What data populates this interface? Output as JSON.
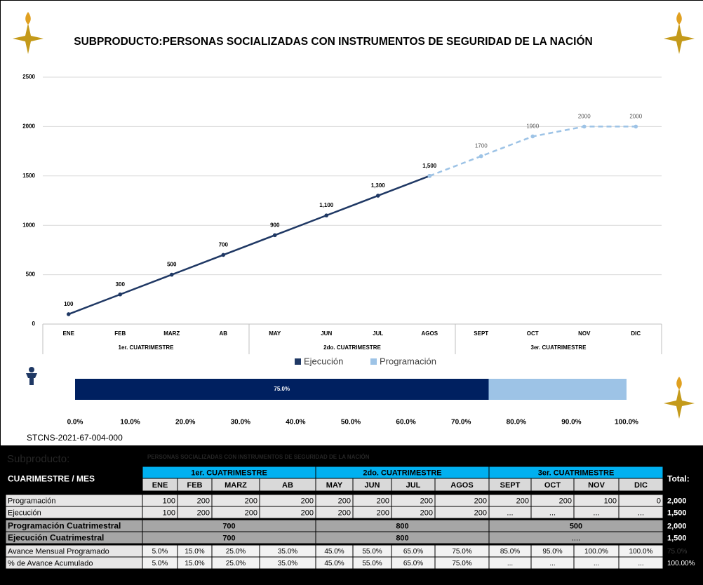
{
  "chart_data": [
    {
      "type": "line",
      "title": "SUBPRODUCTO:PERSONAS SOCIALIZADAS CON INSTRUMENTOS DE SEGURIDAD DE LA NACIÓN",
      "categories": [
        "ENE",
        "FEB",
        "MARZ",
        "AB",
        "MAY",
        "JUN",
        "JUL",
        "AGOS",
        "SEPT",
        "OCT",
        "NOV",
        "DIC"
      ],
      "groups": [
        "1er. CUATRIMESTRE",
        "2do. CUATRIMESTRE",
        "3er. CUATRIMESTRE"
      ],
      "series": [
        {
          "name": "Ejecución",
          "color": "#1f3864",
          "dashed": false,
          "values": [
            100,
            300,
            500,
            700,
            900,
            1100,
            1300,
            1500,
            null,
            null,
            null,
            null
          ],
          "value_labels": [
            "100",
            "300",
            "500",
            "700",
            "900",
            "1,100",
            "1,300",
            "1,500",
            null,
            null,
            null,
            null
          ]
        },
        {
          "name": "Programación",
          "color": "#9dc3e6",
          "dashed": true,
          "values": [
            null,
            null,
            null,
            null,
            null,
            null,
            null,
            1500,
            1700,
            1900,
            2000,
            2000
          ],
          "value_labels": [
            null,
            null,
            null,
            null,
            null,
            null,
            null,
            null,
            "1700",
            "1900",
            "2000",
            "2000"
          ]
        }
      ],
      "ylim": [
        0,
        2500
      ],
      "yticks": [
        0,
        500,
        1000,
        1500,
        2000,
        2500
      ],
      "grid": true,
      "legend": "bottom"
    },
    {
      "type": "stacked-bar",
      "orientation": "horizontal",
      "series": [
        {
          "color": "#002060",
          "values": [
            75
          ],
          "value_labels": [
            "75.0%"
          ]
        },
        {
          "color": "#9dc3e6",
          "values": [
            25
          ]
        }
      ],
      "xlim": [
        0,
        100
      ],
      "xticks": [
        {
          "value": 0,
          "label": "0.0%"
        },
        {
          "value": 10,
          "label": "10.0%"
        },
        {
          "value": 20,
          "label": "20.0%"
        },
        {
          "value": 30,
          "label": "30.0%"
        },
        {
          "value": 40,
          "label": "40.0%"
        },
        {
          "value": 50,
          "label": "50.0%"
        },
        {
          "value": 60,
          "label": "60.0%"
        },
        {
          "value": 70,
          "label": "70.0%"
        },
        {
          "value": 80,
          "label": "80.0%"
        },
        {
          "value": 90,
          "label": "90.0%"
        },
        {
          "value": 100,
          "label": "100.0%"
        }
      ]
    }
  ],
  "code": "STCNS-2021-67-004-000",
  "table": {
    "caption": "Subproducto:",
    "subtitle": "PERSONAS SOCIALIZADAS CON INSTRUMENTOS DE SEGURIDAD DE LA NACIÓN",
    "corner": "CUARIMESTRE / MES",
    "groups": [
      "1er. CUATRIMESTRE",
      "2do. CUATRIMESTRE",
      "3er. CUATRIMESTRE"
    ],
    "months": [
      "ENE",
      "FEB",
      "MARZ",
      "AB",
      "MAY",
      "JUN",
      "JUL",
      "AGOS",
      "SEPT",
      "OCT",
      "NOV",
      "DIC"
    ],
    "total_header": "Total:",
    "rows": [
      {
        "label": "Programación",
        "cells": [
          100,
          200,
          200,
          200,
          200,
          200,
          200,
          200,
          200,
          200,
          100,
          0
        ],
        "total": "2,000"
      },
      {
        "label": "Ejecución",
        "cells": [
          100,
          200,
          200,
          200,
          200,
          200,
          200,
          200,
          "...",
          "...",
          "...",
          "..."
        ],
        "total": "1,500"
      },
      {
        "label": "Programación Cuatrimestral",
        "cells": [
          700,
          800,
          500
        ],
        "total": "2,000"
      },
      {
        "label": "Ejecución Cuatrimestral",
        "cells": [
          700,
          800,
          "...."
        ],
        "total": "1,500"
      },
      {
        "label": "Avance Mensual Programado",
        "cells": [
          "5.0%",
          "15.0%",
          "25.0%",
          "35.0%",
          "45.0%",
          "55.0%",
          "65.0%",
          "75.0%",
          "85.0%",
          "95.0%",
          "100.0%",
          "100.0%"
        ],
        "total": "75.0%"
      },
      {
        "label": "% de Avance Acumulado",
        "cells": [
          "5.0%",
          "15.0%",
          "25.0%",
          "35.0%",
          "45.0%",
          "55.0%",
          "65.0%",
          "75.0%",
          "...",
          "...",
          "...",
          "..."
        ],
        "total": "100.00%"
      }
    ]
  }
}
